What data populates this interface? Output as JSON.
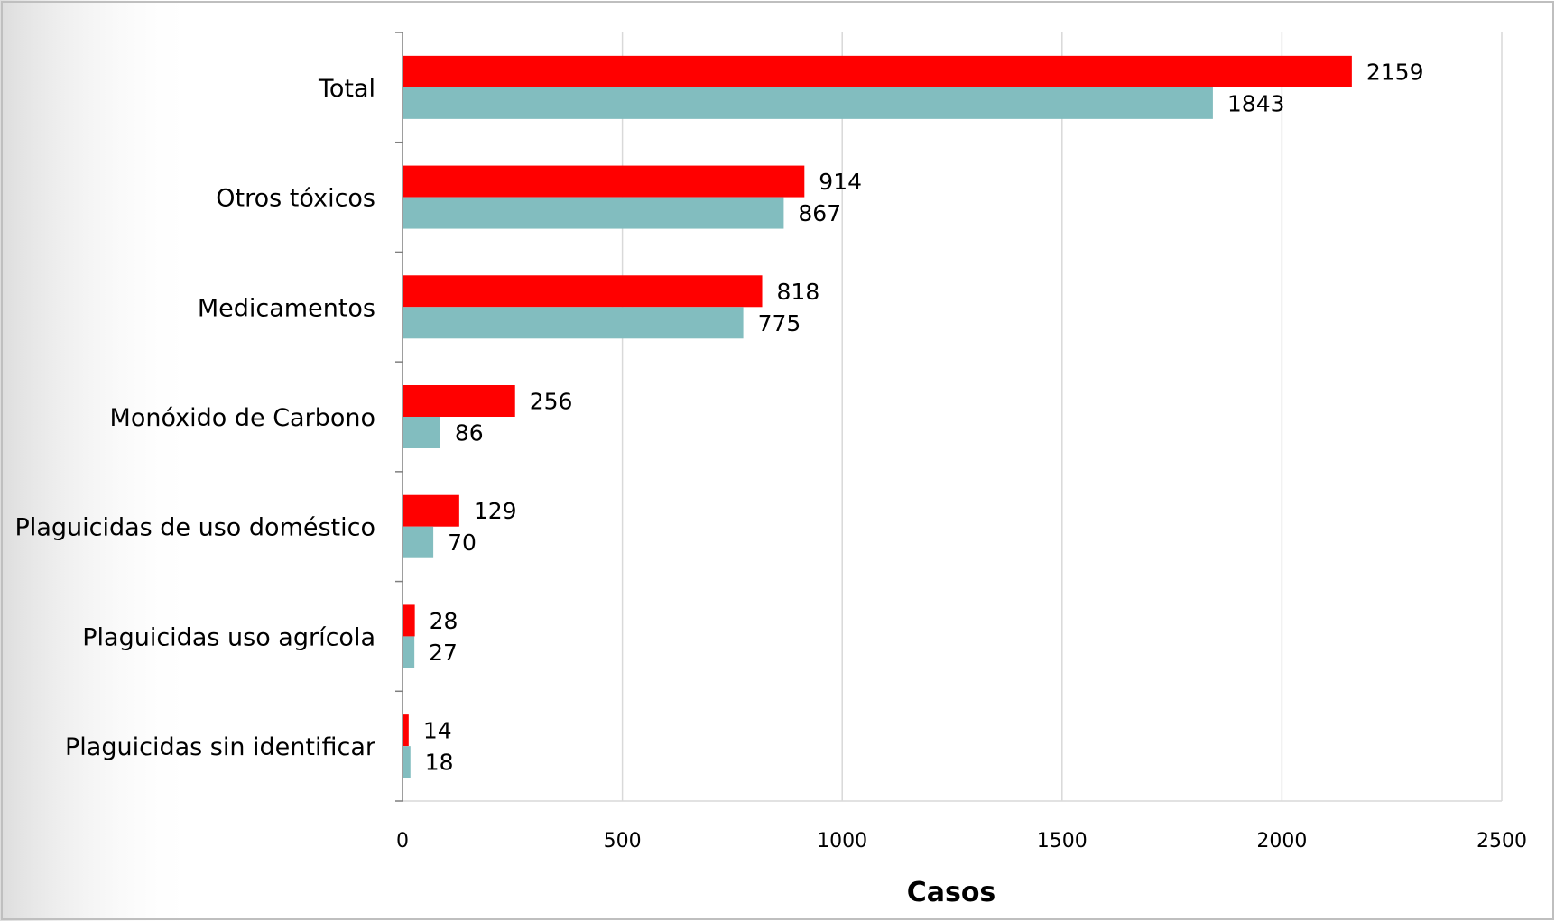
{
  "chart_data": {
    "type": "bar",
    "orientation": "horizontal",
    "categories": [
      "Total",
      "Otros tóxicos",
      "Medicamentos",
      "Monóxido de Carbono",
      "Plaguicidas de uso doméstico",
      "Plaguicidas  uso agrícola",
      "Plaguicidas sin identificar"
    ],
    "series": [
      {
        "color": "#ff0000",
        "values": [
          2159,
          914,
          818,
          256,
          129,
          28,
          14
        ]
      },
      {
        "color": "#82bdbf",
        "values": [
          1843,
          867,
          775,
          86,
          70,
          27,
          18
        ]
      }
    ],
    "xlabel": "Casos",
    "ylabel": "",
    "title": "",
    "xlim": [
      0,
      2500
    ],
    "xticks": [
      0,
      500,
      1000,
      1500,
      2000,
      2500
    ],
    "grid": true,
    "legend": "none"
  }
}
